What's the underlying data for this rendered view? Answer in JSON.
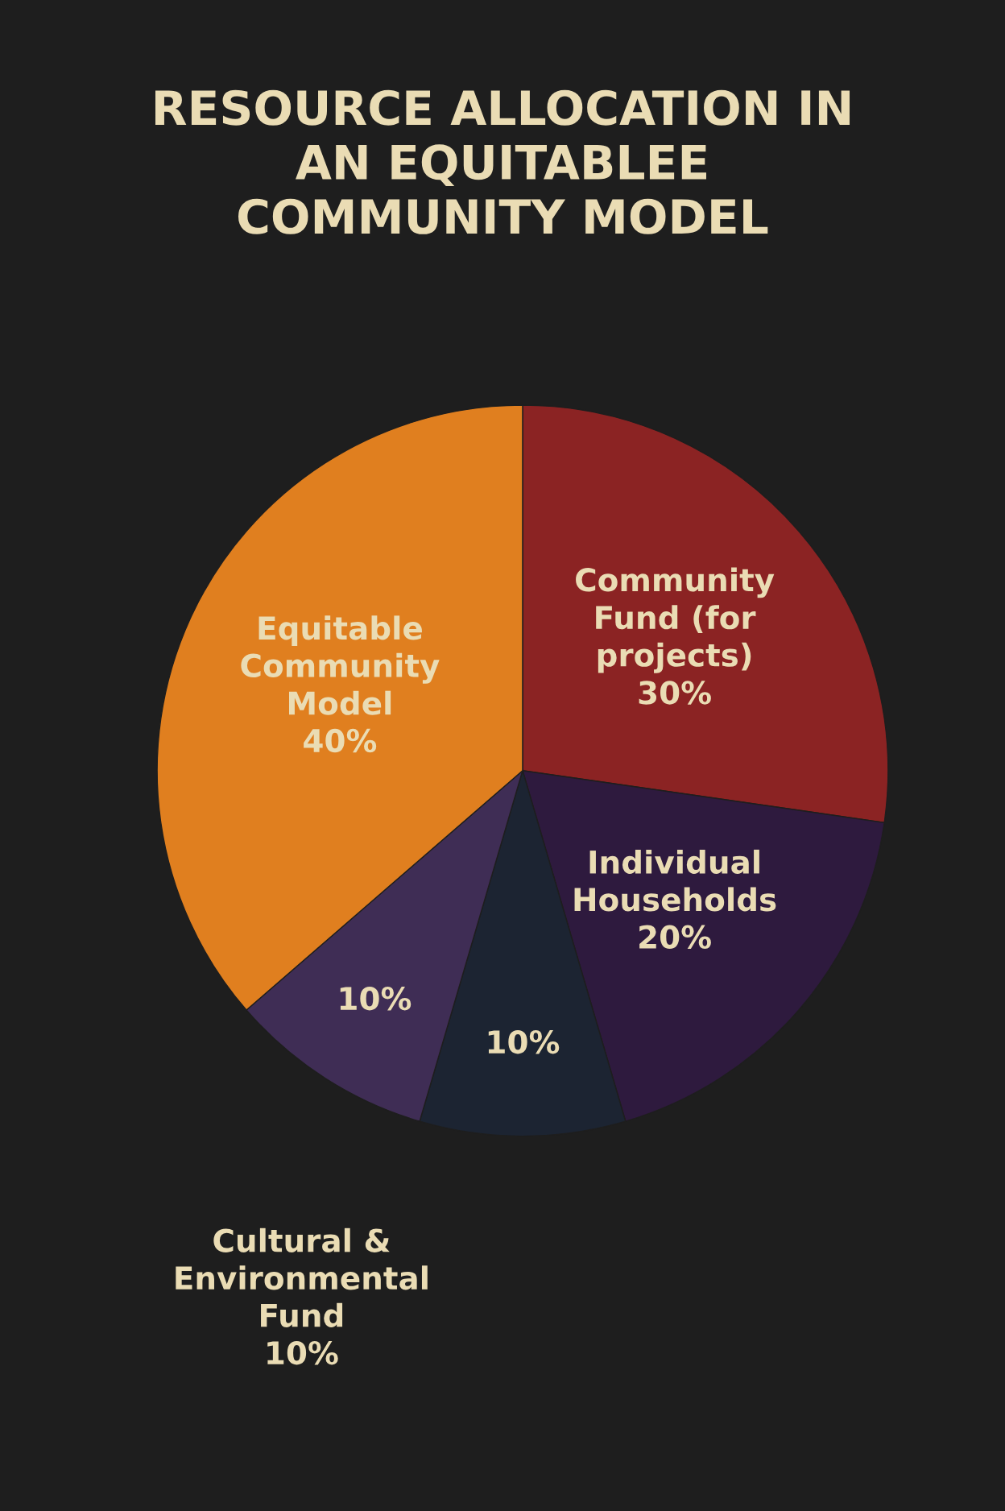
{
  "chart_data": {
    "type": "pie",
    "title": "RESOURCE ALLOCATION IN\nAN EQUITABLEE\nCOMMUNITY MODEL",
    "categories": [
      "Community\nFund (for\nprojects)",
      "Individual\nHouseholds",
      null,
      null,
      "Equitable\nCommunity\nModel"
    ],
    "values": [
      30,
      20,
      10,
      10,
      40
    ],
    "value_labels": [
      "30%",
      "20%",
      "10%",
      "10%",
      "40%"
    ],
    "colors": [
      "#8b2323",
      "#2e1a3e",
      "#1c2432",
      "#3f2d55",
      "#e07f1f"
    ],
    "annotations": [
      "Cultural &\nEnvironmental\nFund\n10%"
    ]
  }
}
